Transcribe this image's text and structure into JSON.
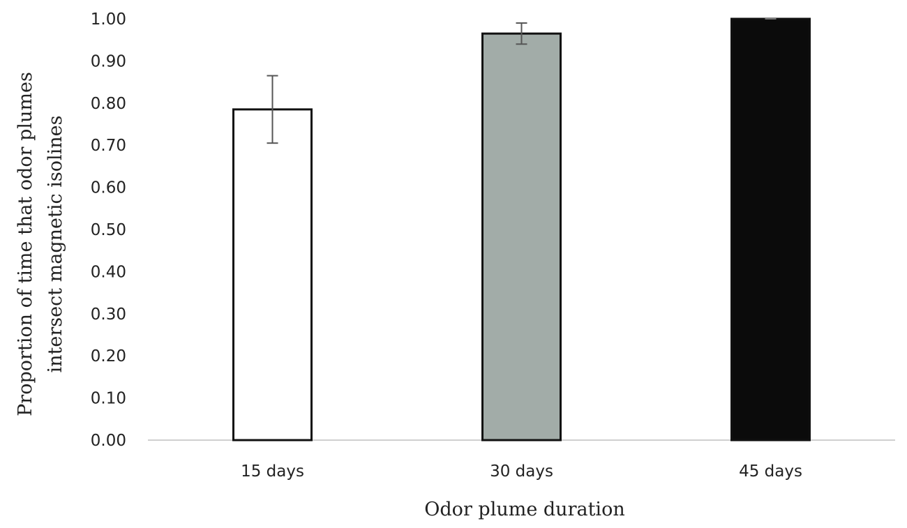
{
  "chart_data": {
    "type": "bar",
    "categories": [
      "15 days",
      "30 days",
      "45 days"
    ],
    "values": [
      0.785,
      0.965,
      1.0
    ],
    "error_bars": [
      0.08,
      0.025,
      0.0
    ],
    "bar_colors": [
      "#ffffff",
      "#a2aca8",
      "#0b0b0b"
    ],
    "bar_outline": "#111111",
    "xlabel": "Odor plume duration",
    "ylabel_lines": [
      "Proportion of time that odor plumes",
      "intersect magnetic isolines"
    ],
    "ylim": [
      0,
      1.0
    ],
    "yticks": [
      0.0,
      0.1,
      0.2,
      0.3,
      0.4,
      0.5,
      0.6,
      0.7,
      0.8,
      0.9,
      1.0
    ],
    "ytick_labels": [
      "0.00",
      "0.10",
      "0.20",
      "0.30",
      "0.40",
      "0.50",
      "0.60",
      "0.70",
      "0.80",
      "0.90",
      "1.00"
    ],
    "grid": false
  }
}
